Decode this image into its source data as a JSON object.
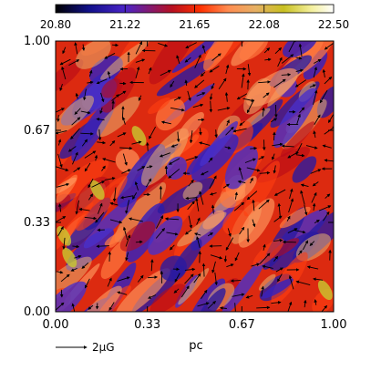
{
  "chart_data": {
    "type": "heatmap",
    "title": "",
    "xlabel": "pc",
    "ylabel": "",
    "xlim": [
      0.0,
      1.0
    ],
    "ylim": [
      0.0,
      1.0
    ],
    "x_ticks": [
      "0.00",
      "0.33",
      "0.67",
      "1.00"
    ],
    "y_ticks": [
      "0.00",
      "0.33",
      "0.67",
      "1.00"
    ],
    "x_tick_values": [
      0.0,
      0.33,
      0.67,
      1.0
    ],
    "y_tick_values": [
      0.0,
      0.33,
      0.67,
      1.0
    ],
    "colorbar": {
      "ticks": [
        "20.80",
        "21.22",
        "21.65",
        "22.08",
        "22.50"
      ],
      "range": [
        20.8,
        22.5
      ],
      "colors": [
        "#000000",
        "#1a1aa0",
        "#5a2ad0",
        "#c8101a",
        "#ff3a00",
        "#ff8a50",
        "#e8b060",
        "#d0d020",
        "#ffffff"
      ],
      "orientation": "horizontal",
      "placement": "top"
    },
    "vector_field": {
      "description_units": "magnetic field vectors",
      "legend_arrow_label": "2μG",
      "approximate_grid_samples": 22
    }
  },
  "legend": {
    "arrow_label": "2μG"
  }
}
